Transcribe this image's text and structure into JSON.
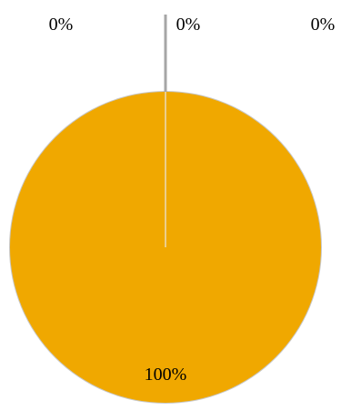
{
  "chart_data": {
    "type": "pie",
    "slices": [
      {
        "label": "0%",
        "value": 0,
        "color": "#1f4e79"
      },
      {
        "label": "0%",
        "value": 0,
        "color": "#c0504d"
      },
      {
        "label": "0%",
        "value": 0,
        "color": "#9bbb59"
      },
      {
        "label": "100%",
        "value": 100,
        "color": "#f0a800"
      }
    ],
    "border_color": "#c8c8c8",
    "leader_line_color": "#a6a6a6"
  }
}
